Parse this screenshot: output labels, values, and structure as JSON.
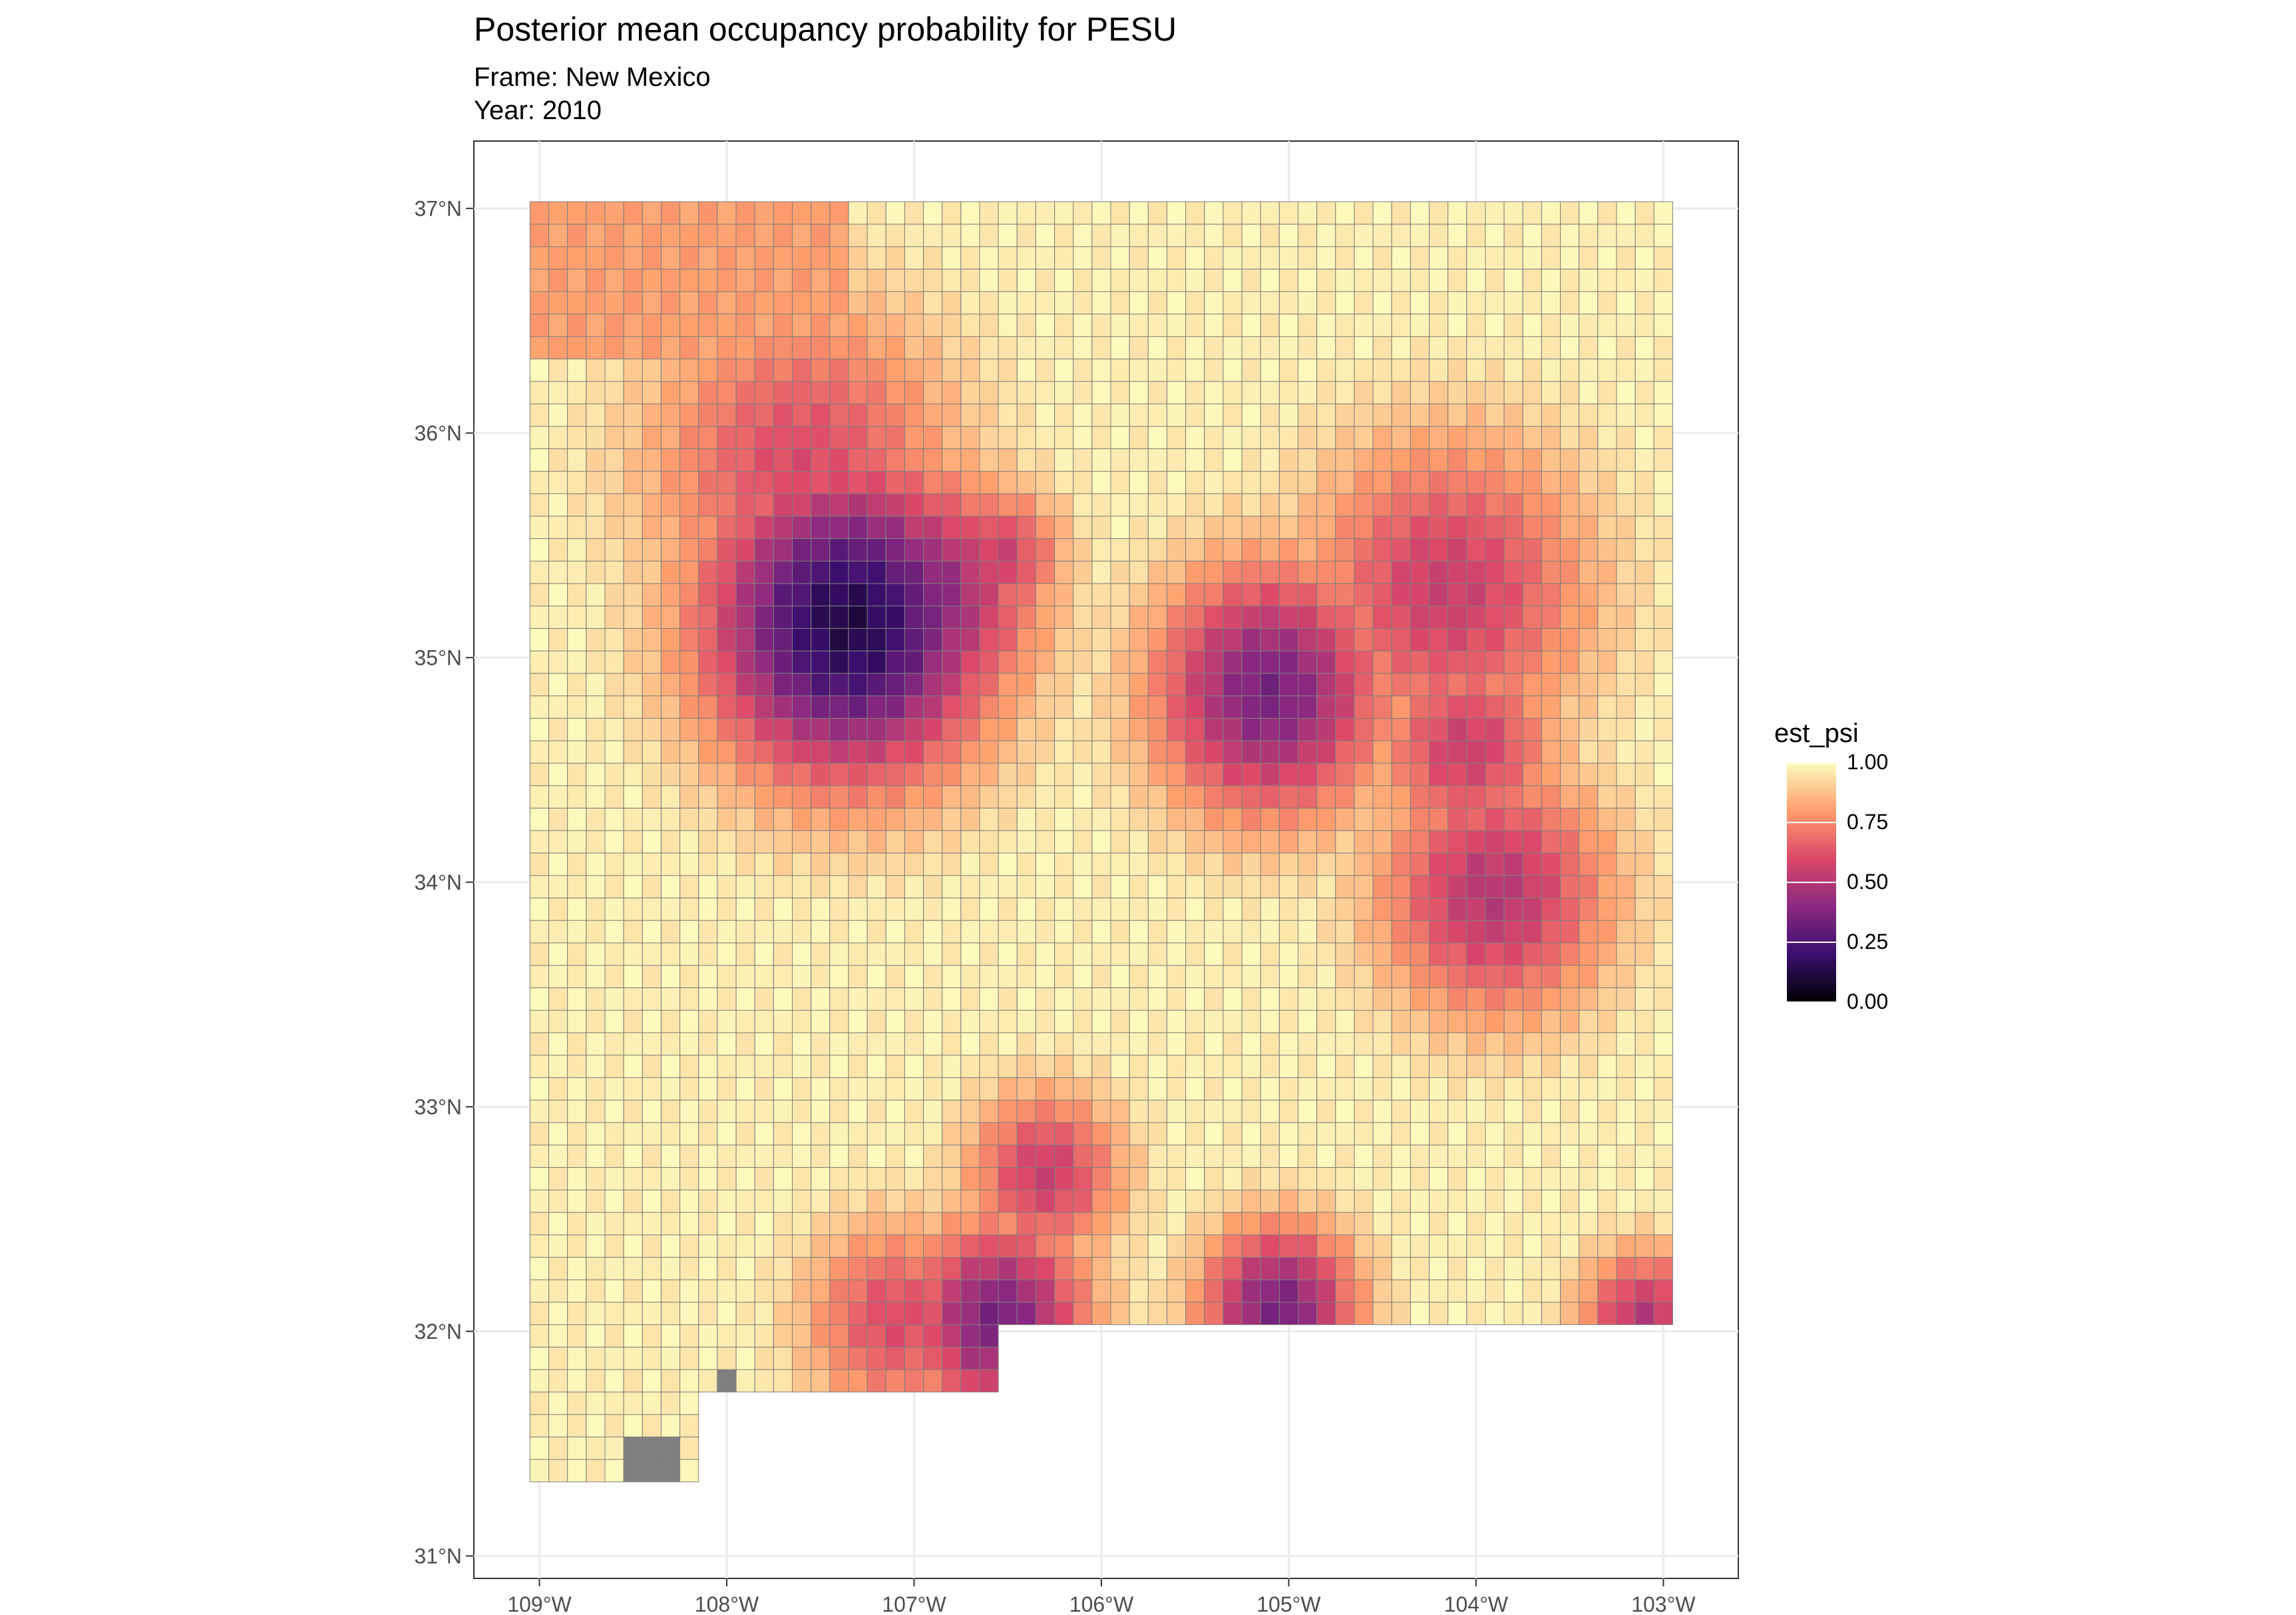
{
  "title": "Posterior mean occupancy probability for PESU",
  "subtitle_frame": "Frame: New Mexico",
  "subtitle_year": "Year: 2010",
  "colors": {
    "palette": [
      "#000004",
      "#3b0f70",
      "#8c2981",
      "#de4968",
      "#fe9f6d",
      "#fcfdbf"
    ],
    "missing": "#7f7f7f",
    "grid": "#ebebeb",
    "cell_border": "#7f7f7f"
  },
  "chart_data": {
    "type": "heatmap",
    "title": "Posterior mean occupancy probability for PESU",
    "subtitle": [
      "Frame: New Mexico",
      "Year: 2010"
    ],
    "x_ticks": [
      "109°W",
      "108°W",
      "107°W",
      "106°W",
      "105°W",
      "104°W",
      "103°W"
    ],
    "x_tick_values": [
      -109,
      -108,
      -107,
      -106,
      -105,
      -104,
      -103
    ],
    "y_ticks": [
      "37°N",
      "36°N",
      "35°N",
      "34°N",
      "33°N",
      "32°N",
      "31°N"
    ],
    "y_tick_values": [
      37,
      36,
      35,
      34,
      33,
      32,
      31
    ],
    "xlim": [
      -109.35,
      -102.6
    ],
    "ylim": [
      30.9,
      37.3
    ],
    "grid": true,
    "legend": {
      "title": "est_psi",
      "position": "right",
      "breaks": [
        "1.00",
        "0.75",
        "0.50",
        "0.25",
        "0.00"
      ],
      "range": [
        0,
        1
      ]
    },
    "cell_size_deg": 0.1,
    "hotspots": [
      {
        "lon": -107.35,
        "lat": 35.15,
        "value": 0.12,
        "radius_deg": 0.55
      },
      {
        "lon": -107.0,
        "lat": 35.25,
        "value": 0.35,
        "radius_deg": 0.45
      },
      {
        "lon": -106.55,
        "lat": 35.45,
        "value": 0.55,
        "radius_deg": 0.25
      },
      {
        "lon": -107.6,
        "lat": 35.85,
        "value": 0.6,
        "radius_deg": 0.6
      },
      {
        "lon": -105.1,
        "lat": 34.85,
        "value": 0.35,
        "radius_deg": 0.45
      },
      {
        "lon": -104.15,
        "lat": 35.3,
        "value": 0.55,
        "radius_deg": 0.55
      },
      {
        "lon": -104.05,
        "lat": 34.6,
        "value": 0.55,
        "radius_deg": 0.35
      },
      {
        "lon": -103.9,
        "lat": 33.95,
        "value": 0.5,
        "radius_deg": 0.45
      },
      {
        "lon": -106.55,
        "lat": 32.05,
        "value": 0.35,
        "radius_deg": 0.35
      },
      {
        "lon": -106.3,
        "lat": 32.7,
        "value": 0.55,
        "radius_deg": 0.3
      },
      {
        "lon": -105.05,
        "lat": 32.1,
        "value": 0.35,
        "radius_deg": 0.3
      },
      {
        "lon": -103.1,
        "lat": 32.05,
        "value": 0.5,
        "radius_deg": 0.25
      },
      {
        "lon": -107.1,
        "lat": 32.05,
        "value": 0.6,
        "radius_deg": 0.35
      }
    ]
  }
}
